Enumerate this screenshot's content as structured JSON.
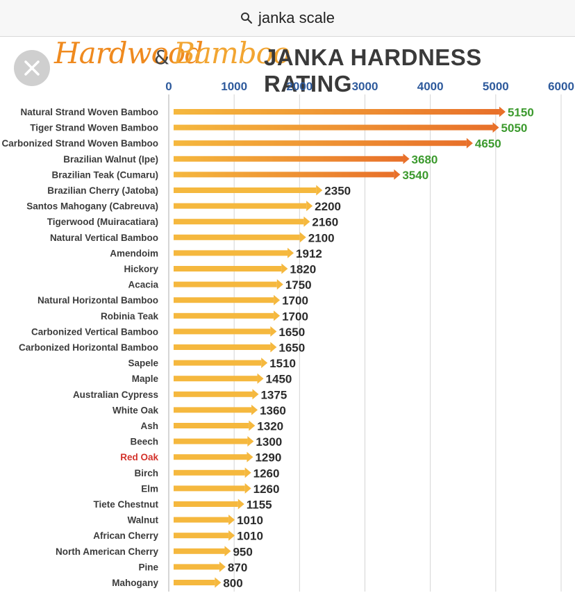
{
  "search": {
    "query": "janka scale"
  },
  "header": {
    "brand_part1": "Hardwood",
    "brand_amp": "&",
    "brand_part2": "Bamboo",
    "title": "JANKA HARDNESS RATING"
  },
  "colors": {
    "bar_yellow": "#f5b83e",
    "bar_orange": "#e8702a",
    "value_green": "#3c9a2e",
    "value_dark": "#2b2b2b",
    "label_red": "#d3322b",
    "axis_blue": "#2e5a9c"
  },
  "chart_data": {
    "type": "bar",
    "orientation": "horizontal",
    "xlim": [
      0,
      6000
    ],
    "x_ticks": [
      "0",
      "1000",
      "2000",
      "3000",
      "4000",
      "5000",
      "6000"
    ],
    "grid": true,
    "categories": [
      "Natural Strand Woven Bamboo",
      "Tiger Strand Woven Bamboo",
      "Carbonized Strand Woven Bamboo",
      "Brazilian Walnut (Ipe)",
      "Brazilian Teak (Cumaru)",
      "Brazilian Cherry (Jatoba)",
      "Santos Mahogany (Cabreuva)",
      "Tigerwood (Muiracatiara)",
      "Natural Vertical Bamboo",
      "Amendoim",
      "Hickory",
      "Acacia",
      "Natural Horizontal Bamboo",
      "Robinia Teak",
      "Carbonized Vertical Bamboo",
      "Carbonized Horizontal Bamboo",
      "Sapele",
      "Maple",
      "Australian Cypress",
      "White Oak",
      "Ash",
      "Beech",
      "Red Oak",
      "Birch",
      "Elm",
      "Tiete Chestnut",
      "Walnut",
      "African Cherry",
      "North American Cherry",
      "Pine",
      "Mahogany"
    ],
    "values": [
      5150,
      5050,
      4650,
      3680,
      3540,
      2350,
      2200,
      2160,
      2100,
      1912,
      1820,
      1750,
      1700,
      1700,
      1650,
      1650,
      1510,
      1450,
      1375,
      1360,
      1320,
      1300,
      1290,
      1260,
      1260,
      1155,
      1010,
      1010,
      950,
      870,
      800
    ],
    "highlighted_category": "Red Oak",
    "highlight_top_n": 5
  }
}
